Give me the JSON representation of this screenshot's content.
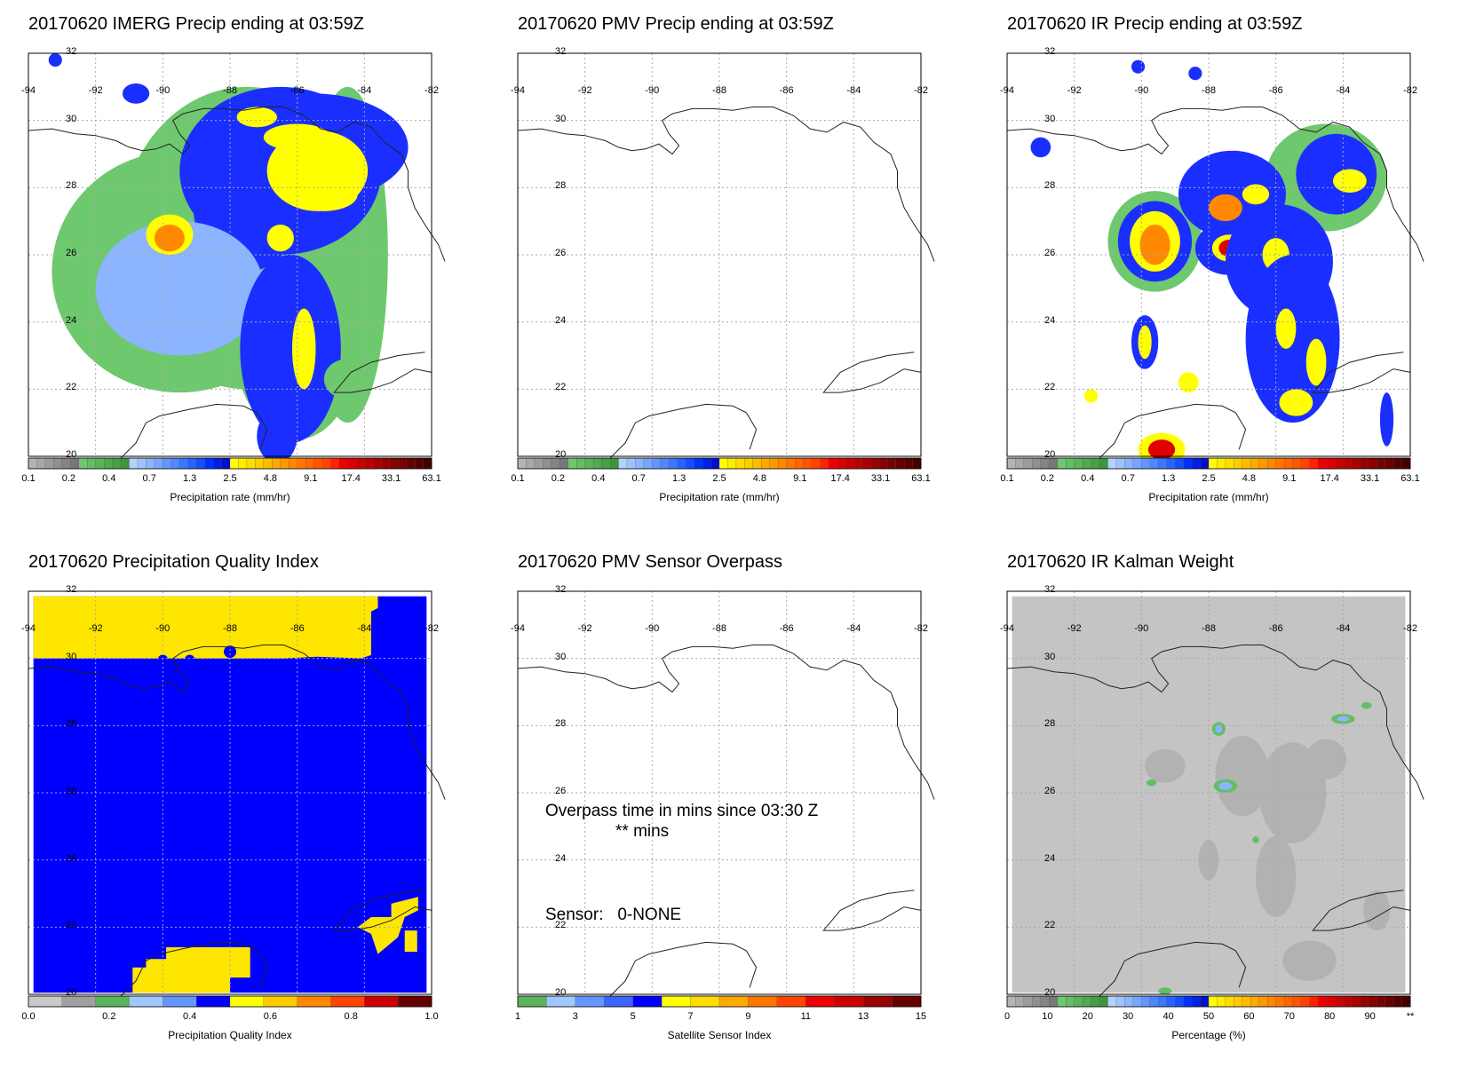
{
  "panels": [
    {
      "id": "imerg",
      "title": "20170620 IMERG Precip ending at 03:59Z",
      "map": "imerg",
      "colorbar": "precip"
    },
    {
      "id": "pmv",
      "title": "20170620 PMV Precip ending at 03:59Z",
      "map": "blank",
      "colorbar": "precip"
    },
    {
      "id": "ir",
      "title": "20170620 IR Precip ending at 03:59Z",
      "map": "ir",
      "colorbar": "precip"
    },
    {
      "id": "pqi",
      "title": "20170620 Precipitation Quality Index",
      "map": "pqi",
      "colorbar": "quality"
    },
    {
      "id": "overpass",
      "title": "20170620 PMV Sensor Overpass",
      "map": "blank",
      "colorbar": "sensor"
    },
    {
      "id": "kalman",
      "title": "20170620 IR Kalman Weight",
      "map": "kalman",
      "colorbar": "percent"
    }
  ],
  "map_axes": {
    "lon_labels": [
      "-94",
      "-92",
      "-90",
      "-88",
      "-86",
      "-84",
      "-82"
    ],
    "lat_labels": [
      "32",
      "30",
      "28",
      "26",
      "24",
      "22",
      "20"
    ]
  },
  "colorbars": {
    "precip": {
      "label": "Precipitation rate (mm/hr)",
      "ticks": [
        "0.1",
        "0.2",
        "0.4",
        "0.7",
        "1.3",
        "2.5",
        "4.8",
        "9.1",
        "17.4",
        "33.1",
        "63.1"
      ],
      "colors": [
        "#b4b4b4",
        "#a8a8a8",
        "#9c9c9c",
        "#909090",
        "#848484",
        "#787878",
        "#6ec86e",
        "#64be64",
        "#5ab45a",
        "#50aa50",
        "#46a046",
        "#3c963c",
        "#b4d2ff",
        "#a0c3ff",
        "#8cb4ff",
        "#78a5ff",
        "#6496ff",
        "#5087ff",
        "#3c78ff",
        "#2864ff",
        "#1450ff",
        "#0032ff",
        "#0020e6",
        "#0010cd",
        "#ffff00",
        "#ffee00",
        "#ffdd00",
        "#ffcc00",
        "#ffbb00",
        "#ffaa00",
        "#ff9900",
        "#ff8800",
        "#ff7700",
        "#ff6600",
        "#ff5500",
        "#ff4400",
        "#ff2200",
        "#ee0000",
        "#dd0000",
        "#cc0000",
        "#bb0000",
        "#aa0000",
        "#990000",
        "#880000",
        "#770000",
        "#660000",
        "#550000",
        "#440000"
      ]
    },
    "quality": {
      "label": "Precipitation Quality Index",
      "ticks": [
        "0.0",
        "0.2",
        "0.4",
        "0.6",
        "0.8",
        "1.0"
      ],
      "colors": [
        "#c8c8c8",
        "#a0a0a0",
        "#5ab45a",
        "#a0c8ff",
        "#6496ff",
        "#0000ff",
        "#ffff00",
        "#ffcc00",
        "#ff8800",
        "#ff4400",
        "#cc0000",
        "#660000"
      ]
    },
    "sensor": {
      "label": "Satellite Sensor Index",
      "ticks": [
        "1",
        "3",
        "5",
        "7",
        "9",
        "11",
        "13",
        "15"
      ],
      "colors": [
        "#5ab45a",
        "#a0c8ff",
        "#6496ff",
        "#3c64ff",
        "#0000ff",
        "#ffff00",
        "#ffdd00",
        "#ffaa00",
        "#ff7700",
        "#ff4400",
        "#ee0000",
        "#cc0000",
        "#990000",
        "#660000"
      ]
    },
    "percent": {
      "label": "Percentage (%)",
      "ticks": [
        "0",
        "10",
        "20",
        "30",
        "40",
        "50",
        "60",
        "70",
        "80",
        "90",
        "**"
      ],
      "colors": [
        "#b4b4b4",
        "#a8a8a8",
        "#9c9c9c",
        "#909090",
        "#848484",
        "#787878",
        "#6ec86e",
        "#64be64",
        "#5ab45a",
        "#50aa50",
        "#46a046",
        "#3c963c",
        "#b4d2ff",
        "#a0c3ff",
        "#8cb4ff",
        "#78a5ff",
        "#6496ff",
        "#5087ff",
        "#3c78ff",
        "#2864ff",
        "#1450ff",
        "#0032ff",
        "#0020e6",
        "#0010cd",
        "#ffff00",
        "#ffee00",
        "#ffdd00",
        "#ffcc00",
        "#ffbb00",
        "#ffaa00",
        "#ff9900",
        "#ff8800",
        "#ff7700",
        "#ff6600",
        "#ff5500",
        "#ff4400",
        "#ff2200",
        "#ee0000",
        "#dd0000",
        "#cc0000",
        "#bb0000",
        "#aa0000",
        "#990000",
        "#880000",
        "#770000",
        "#660000",
        "#550000",
        "#440000"
      ]
    }
  },
  "overpass": {
    "line1": "Overpass time in mins since 03:30 Z",
    "line2": "** mins",
    "sensor_line": "Sensor:   0-NONE"
  },
  "chart_data": [
    {
      "type": "heatmap",
      "title": "20170620 IMERG Precip ending at 03:59Z",
      "xlim": [
        -94,
        -82
      ],
      "ylim": [
        20,
        32
      ],
      "colorbar_label": "Precipitation rate (mm/hr)"
    },
    {
      "type": "heatmap",
      "title": "20170620 PMV Precip ending at 03:59Z",
      "xlim": [
        -94,
        -82
      ],
      "ylim": [
        20,
        32
      ],
      "colorbar_label": "Precipitation rate (mm/hr)"
    },
    {
      "type": "heatmap",
      "title": "20170620 IR Precip ending at 03:59Z",
      "xlim": [
        -94,
        -82
      ],
      "ylim": [
        20,
        32
      ],
      "colorbar_label": "Precipitation rate (mm/hr)"
    },
    {
      "type": "heatmap",
      "title": "20170620 Precipitation Quality Index",
      "xlim": [
        -94,
        -82
      ],
      "ylim": [
        20,
        32
      ],
      "colorbar_label": "Precipitation Quality Index"
    },
    {
      "type": "heatmap",
      "title": "20170620 PMV Sensor Overpass",
      "xlim": [
        -94,
        -82
      ],
      "ylim": [
        20,
        32
      ],
      "colorbar_label": "Satellite Sensor Index"
    },
    {
      "type": "heatmap",
      "title": "20170620 IR Kalman Weight",
      "xlim": [
        -94,
        -82
      ],
      "ylim": [
        20,
        32
      ],
      "colorbar_label": "Percentage (%)"
    }
  ]
}
